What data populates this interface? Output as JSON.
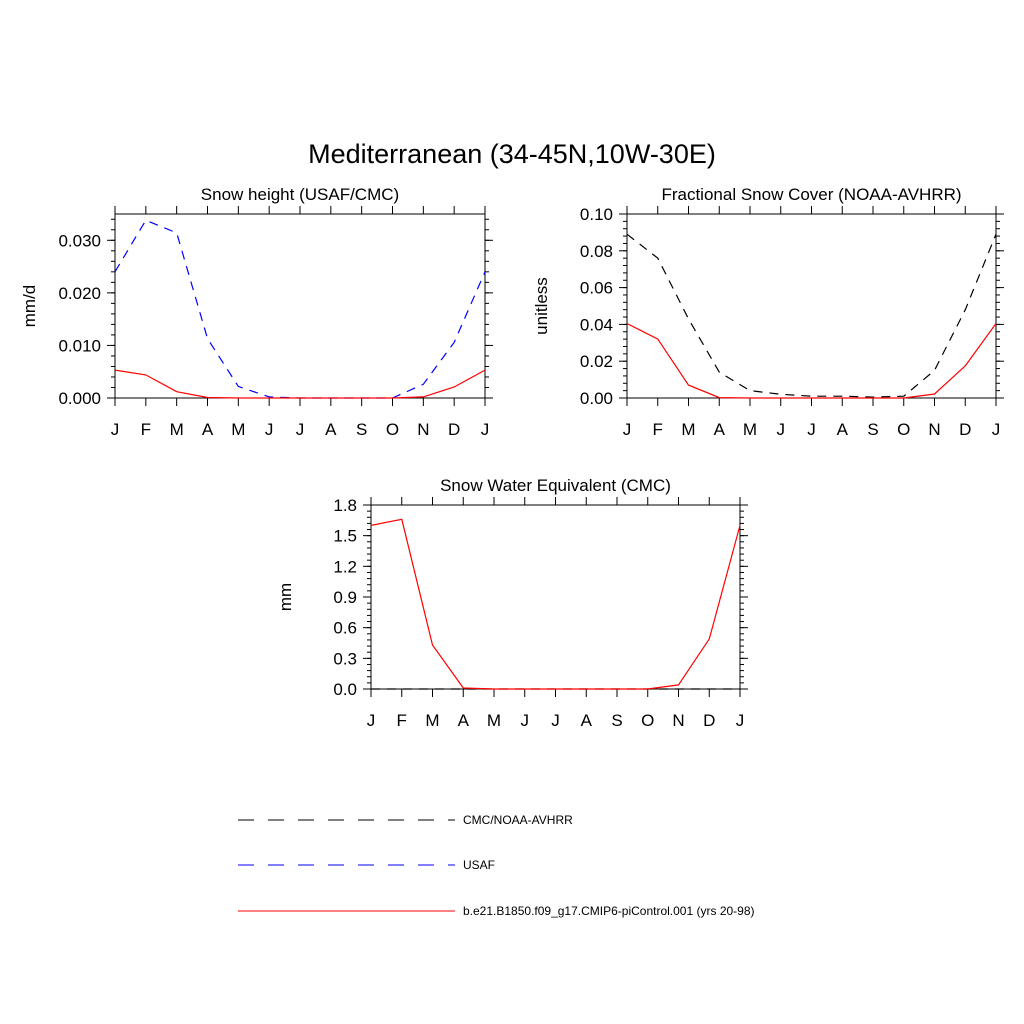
{
  "figure": {
    "title": "Mediterranean (34-45N,10W-30E)"
  },
  "legend": [
    {
      "label": "CMC/NOAA-AVHRR",
      "color": "#000000",
      "dash": "long-dash"
    },
    {
      "label": "USAF",
      "color": "#0000ff",
      "dash": "long-dash"
    },
    {
      "label": "b.e21.B1850.f09_g17.CMIP6-piControl.001 (yrs 20-98)",
      "color": "#ff0000",
      "dash": "solid"
    }
  ],
  "chart_data": [
    {
      "type": "line",
      "title": "Snow height (USAF/CMC)",
      "ylabel": "mm/d",
      "xlabel": "",
      "categories": [
        "J",
        "F",
        "M",
        "A",
        "M",
        "J",
        "J",
        "A",
        "S",
        "O",
        "N",
        "D",
        "J"
      ],
      "ylim": [
        0,
        0.035
      ],
      "yticks": [
        0.0,
        0.01,
        0.02,
        0.03
      ],
      "ytick_labels": [
        "0.000",
        "0.010",
        "0.020",
        "0.030"
      ],
      "series": [
        {
          "name": "USAF",
          "color": "#0000ff",
          "dash": "long-dash",
          "values": [
            0.024,
            0.0338,
            0.0314,
            0.0113,
            0.0022,
            0.0002,
            0.0,
            0.0,
            0.0,
            0.0,
            0.0026,
            0.0106,
            0.024
          ]
        },
        {
          "name": "b.e21.B1850.f09_g17.CMIP6-piControl.001 (yrs 20-98)",
          "color": "#ff0000",
          "dash": "solid",
          "values": [
            0.0053,
            0.0044,
            0.0012,
            0.0001,
            0.0,
            0.0,
            0.0,
            0.0,
            0.0,
            0.0,
            0.0002,
            0.0021,
            0.0053
          ]
        }
      ]
    },
    {
      "type": "line",
      "title": "Fractional Snow Cover (NOAA-AVHRR)",
      "ylabel": "unitless",
      "xlabel": "",
      "categories": [
        "J",
        "F",
        "M",
        "A",
        "M",
        "J",
        "J",
        "A",
        "S",
        "O",
        "N",
        "D",
        "J"
      ],
      "ylim": [
        0,
        0.1
      ],
      "yticks": [
        0.0,
        0.02,
        0.04,
        0.06,
        0.08,
        0.1
      ],
      "ytick_labels": [
        "0.00",
        "0.02",
        "0.04",
        "0.06",
        "0.08",
        "0.10"
      ],
      "series": [
        {
          "name": "CMC/NOAA-AVHRR",
          "color": "#000000",
          "dash": "long-dash",
          "values": [
            0.089,
            0.076,
            0.043,
            0.014,
            0.004,
            0.002,
            0.001,
            0.001,
            0.0005,
            0.001,
            0.015,
            0.048,
            0.089
          ]
        },
        {
          "name": "b.e21.B1850.f09_g17.CMIP6-piControl.001 (yrs 20-98)",
          "color": "#ff0000",
          "dash": "solid",
          "values": [
            0.0405,
            0.032,
            0.007,
            0.0002,
            0.0,
            0.0,
            0.0,
            0.0,
            0.0,
            0.0,
            0.0022,
            0.0175,
            0.0405
          ]
        }
      ]
    },
    {
      "type": "line",
      "title": "Snow Water Equivalent (CMC)",
      "ylabel": "mm",
      "xlabel": "",
      "categories": [
        "J",
        "F",
        "M",
        "A",
        "M",
        "J",
        "J",
        "A",
        "S",
        "O",
        "N",
        "D",
        "J"
      ],
      "ylim": [
        0,
        1.8
      ],
      "yticks": [
        0.0,
        0.3,
        0.6,
        0.9,
        1.2,
        1.5,
        1.8
      ],
      "ytick_labels": [
        "0.0",
        "0.3",
        "0.6",
        "0.9",
        "1.2",
        "1.5",
        "1.8"
      ],
      "series": [
        {
          "name": "CMC/NOAA-AVHRR",
          "color": "#000000",
          "dash": "long-dash",
          "values": [
            0.0,
            0.0,
            0.0,
            0.0,
            0.0,
            0.0,
            0.0,
            0.0,
            0.0,
            0.0,
            0.0,
            0.0,
            0.0
          ]
        },
        {
          "name": "b.e21.B1850.f09_g17.CMIP6-piControl.001 (yrs 20-98)",
          "color": "#ff0000",
          "dash": "solid",
          "values": [
            1.6,
            1.66,
            0.43,
            0.01,
            0.0,
            0.0,
            0.0,
            0.0,
            0.0,
            0.0,
            0.04,
            0.49,
            1.6
          ]
        }
      ]
    }
  ]
}
